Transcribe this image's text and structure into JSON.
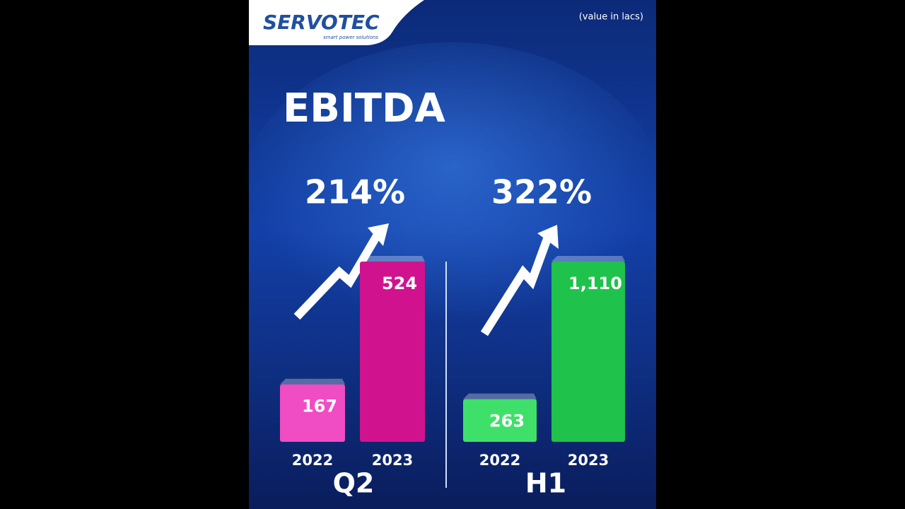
{
  "logo": {
    "name": "SERVOTEC",
    "tagline": "smart power solutions"
  },
  "note": "(value in lacs)",
  "title": "EBITDA",
  "chart_data": [
    {
      "type": "bar",
      "group": "Q2",
      "annotation": "214%",
      "categories": [
        "2022",
        "2023"
      ],
      "values": [
        167,
        524
      ],
      "colors": [
        "#f04cc4",
        "#d0128e"
      ]
    },
    {
      "type": "bar",
      "group": "H1",
      "annotation": "322%",
      "categories": [
        "2022",
        "2023"
      ],
      "values": [
        263,
        1110
      ],
      "value_labels": [
        "263",
        "1,110"
      ],
      "colors": [
        "#3fe06a",
        "#1fc24a"
      ]
    }
  ]
}
